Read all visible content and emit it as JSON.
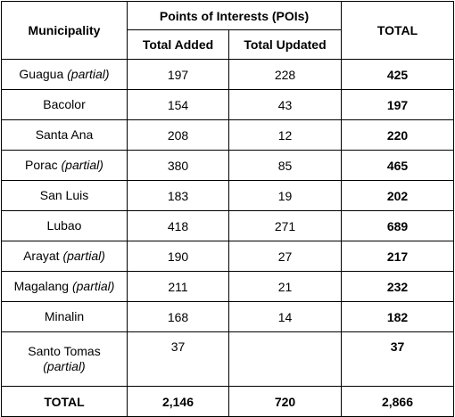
{
  "headers": {
    "municipality": "Municipality",
    "pois_group": "Points of Interests (POIs)",
    "total_added": "Total Added",
    "total_updated": "Total Updated",
    "total": "TOTAL"
  },
  "rows": [
    {
      "name": "Guagua",
      "qualifier": "(partial)",
      "added": "197",
      "updated": "228",
      "total": "425"
    },
    {
      "name": "Bacolor",
      "qualifier": "",
      "added": "154",
      "updated": "43",
      "total": "197"
    },
    {
      "name": "Santa Ana",
      "qualifier": "",
      "added": "208",
      "updated": "12",
      "total": "220"
    },
    {
      "name": "Porac",
      "qualifier": "(partial)",
      "added": "380",
      "updated": "85",
      "total": "465"
    },
    {
      "name": "San Luis",
      "qualifier": "",
      "added": "183",
      "updated": "19",
      "total": "202"
    },
    {
      "name": "Lubao",
      "qualifier": "",
      "added": "418",
      "updated": "271",
      "total": "689"
    },
    {
      "name": "Arayat",
      "qualifier": "(partial)",
      "added": "190",
      "updated": "27",
      "total": "217"
    },
    {
      "name": "Magalang",
      "qualifier": "(partial)",
      "added": "211",
      "updated": "21",
      "total": "232"
    },
    {
      "name": "Minalin",
      "qualifier": "",
      "added": "168",
      "updated": "14",
      "total": "182"
    },
    {
      "name": "Santo Tomas",
      "qualifier": "(partial)",
      "added": "37",
      "updated": "",
      "total": "37"
    }
  ],
  "totals": {
    "label": "TOTAL",
    "added": "2,146",
    "updated": "720",
    "total": "2,866"
  }
}
